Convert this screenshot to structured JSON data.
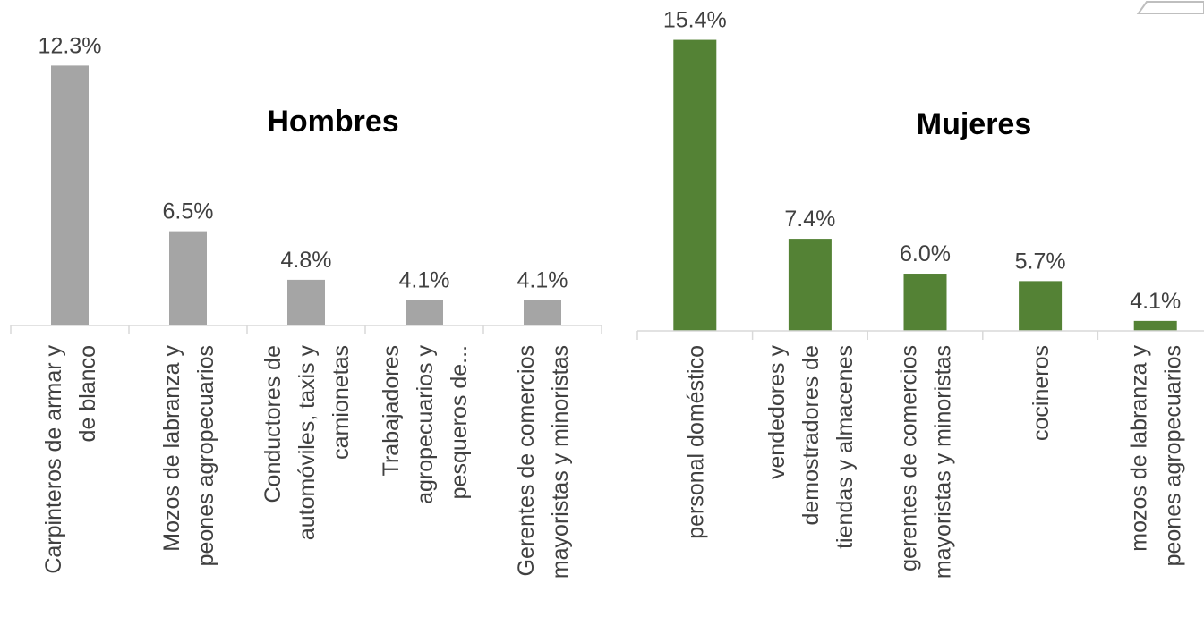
{
  "chart_data": [
    {
      "type": "bar",
      "title": "Hombres",
      "categories": [
        [
          "Carpinteros de armar y",
          "de blanco"
        ],
        [
          "Mozos de labranza y",
          "peones agropecuarios"
        ],
        [
          "Conductores de",
          "automóviles, taxis y",
          "camionetas"
        ],
        [
          "Trabajadores",
          "agropecuarios y",
          "pesqueros de..."
        ],
        [
          "Gerentes de comercios",
          "mayoristas y minoristas"
        ]
      ],
      "values": [
        12.3,
        6.5,
        4.8,
        4.1,
        4.1
      ],
      "data_labels": [
        "12.3%",
        "6.5%",
        "4.8%",
        "4.1%",
        "4.1%"
      ],
      "ylim": [
        3.2,
        12.5
      ],
      "color": "#a5a5a5",
      "grid": false,
      "legend": "none"
    },
    {
      "type": "bar",
      "title": "Mujeres",
      "categories": [
        [
          "personal doméstico"
        ],
        [
          "vendedores y",
          "demostradores de",
          "tiendas y almacenes"
        ],
        [
          "gerentes de comercios",
          "mayoristas y minoristas"
        ],
        [
          "cocineros"
        ],
        [
          "mozos de labranza y",
          "peones agropecuarios"
        ]
      ],
      "values": [
        15.4,
        7.4,
        6.0,
        5.7,
        4.1
      ],
      "data_labels": [
        "15.4%",
        "7.4%",
        "6.0%",
        "5.7%",
        "4.1%"
      ],
      "ylim": [
        3.7,
        15.6
      ],
      "color": "#548235",
      "grid": false,
      "legend": "none"
    }
  ]
}
